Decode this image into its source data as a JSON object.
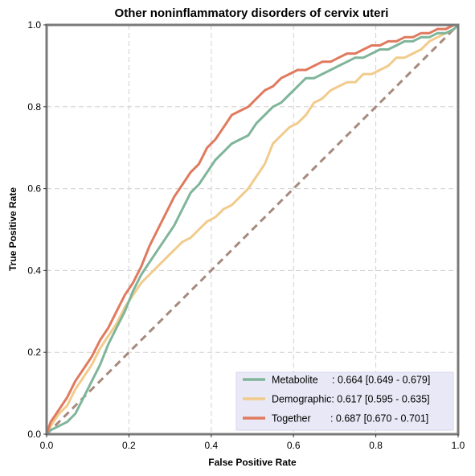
{
  "chart_data": {
    "type": "line",
    "title": "Other noninflammatory disorders of cervix uteri",
    "xlabel": "False Positive Rate",
    "ylabel": "True Positive Rate",
    "xlim": [
      0,
      1
    ],
    "ylim": [
      0,
      1
    ],
    "xticks": [
      "0.0",
      "0.2",
      "0.4",
      "0.6",
      "0.8",
      "1.0"
    ],
    "yticks": [
      "0.0",
      "0.2",
      "0.4",
      "0.6",
      "0.8",
      "1.0"
    ],
    "grid": true,
    "legend_position": "lower-right",
    "series": [
      {
        "name": "Metabolite",
        "legend_label": "Metabolite     : 0.664 [0.649 - 0.679]",
        "color": "#7fb59a",
        "x": [
          0,
          0.01,
          0.03,
          0.05,
          0.07,
          0.09,
          0.11,
          0.13,
          0.15,
          0.17,
          0.19,
          0.21,
          0.23,
          0.25,
          0.27,
          0.29,
          0.31,
          0.33,
          0.35,
          0.37,
          0.39,
          0.41,
          0.43,
          0.45,
          0.47,
          0.49,
          0.51,
          0.53,
          0.55,
          0.57,
          0.59,
          0.61,
          0.63,
          0.65,
          0.67,
          0.69,
          0.71,
          0.73,
          0.75,
          0.77,
          0.79,
          0.81,
          0.83,
          0.85,
          0.87,
          0.89,
          0.91,
          0.93,
          0.95,
          0.97,
          0.99,
          1.0
        ],
        "y": [
          0,
          0.01,
          0.02,
          0.03,
          0.05,
          0.09,
          0.13,
          0.17,
          0.22,
          0.26,
          0.3,
          0.35,
          0.39,
          0.42,
          0.45,
          0.48,
          0.51,
          0.55,
          0.59,
          0.61,
          0.64,
          0.67,
          0.69,
          0.71,
          0.72,
          0.73,
          0.76,
          0.78,
          0.8,
          0.81,
          0.83,
          0.85,
          0.87,
          0.87,
          0.88,
          0.89,
          0.9,
          0.91,
          0.92,
          0.92,
          0.93,
          0.94,
          0.94,
          0.95,
          0.96,
          0.96,
          0.97,
          0.97,
          0.98,
          0.98,
          0.99,
          1.0
        ]
      },
      {
        "name": "Demographic",
        "legend_label": "Demographic: 0.617 [0.595 - 0.635]",
        "color": "#f1cb8c",
        "x": [
          0,
          0.01,
          0.03,
          0.05,
          0.07,
          0.09,
          0.11,
          0.13,
          0.15,
          0.17,
          0.19,
          0.21,
          0.23,
          0.25,
          0.27,
          0.29,
          0.31,
          0.33,
          0.35,
          0.37,
          0.39,
          0.41,
          0.43,
          0.45,
          0.47,
          0.49,
          0.51,
          0.53,
          0.55,
          0.57,
          0.59,
          0.61,
          0.63,
          0.65,
          0.67,
          0.69,
          0.71,
          0.73,
          0.75,
          0.77,
          0.79,
          0.81,
          0.83,
          0.85,
          0.87,
          0.89,
          0.91,
          0.93,
          0.95,
          0.97,
          0.99,
          1.0
        ],
        "y": [
          0,
          0.02,
          0.05,
          0.07,
          0.11,
          0.14,
          0.17,
          0.21,
          0.24,
          0.27,
          0.31,
          0.34,
          0.37,
          0.39,
          0.41,
          0.43,
          0.45,
          0.47,
          0.48,
          0.5,
          0.52,
          0.53,
          0.55,
          0.56,
          0.58,
          0.6,
          0.63,
          0.66,
          0.71,
          0.73,
          0.75,
          0.76,
          0.78,
          0.81,
          0.82,
          0.84,
          0.85,
          0.86,
          0.86,
          0.88,
          0.88,
          0.89,
          0.9,
          0.92,
          0.92,
          0.93,
          0.94,
          0.96,
          0.97,
          0.98,
          0.99,
          1.0
        ]
      },
      {
        "name": "Together",
        "legend_label": "Together       : 0.687 [0.670 - 0.701]",
        "color": "#e07a5f",
        "x": [
          0,
          0.01,
          0.03,
          0.05,
          0.07,
          0.09,
          0.11,
          0.13,
          0.15,
          0.17,
          0.19,
          0.21,
          0.23,
          0.25,
          0.27,
          0.29,
          0.31,
          0.33,
          0.35,
          0.37,
          0.39,
          0.41,
          0.43,
          0.45,
          0.47,
          0.49,
          0.51,
          0.53,
          0.55,
          0.57,
          0.59,
          0.61,
          0.63,
          0.65,
          0.67,
          0.69,
          0.71,
          0.73,
          0.75,
          0.77,
          0.79,
          0.81,
          0.83,
          0.85,
          0.87,
          0.89,
          0.91,
          0.93,
          0.95,
          0.97,
          0.99,
          1.0
        ],
        "y": [
          0,
          0.03,
          0.06,
          0.09,
          0.13,
          0.16,
          0.19,
          0.23,
          0.26,
          0.3,
          0.34,
          0.37,
          0.41,
          0.46,
          0.5,
          0.54,
          0.58,
          0.61,
          0.64,
          0.66,
          0.7,
          0.72,
          0.75,
          0.78,
          0.79,
          0.8,
          0.82,
          0.84,
          0.85,
          0.87,
          0.88,
          0.89,
          0.89,
          0.9,
          0.91,
          0.91,
          0.92,
          0.93,
          0.93,
          0.94,
          0.95,
          0.95,
          0.96,
          0.96,
          0.97,
          0.97,
          0.98,
          0.98,
          0.99,
          0.99,
          1.0,
          1.0
        ]
      },
      {
        "name": "chance",
        "color": "#a68a7d",
        "dashed": true,
        "x": [
          0,
          1
        ],
        "y": [
          0,
          1
        ]
      }
    ]
  }
}
